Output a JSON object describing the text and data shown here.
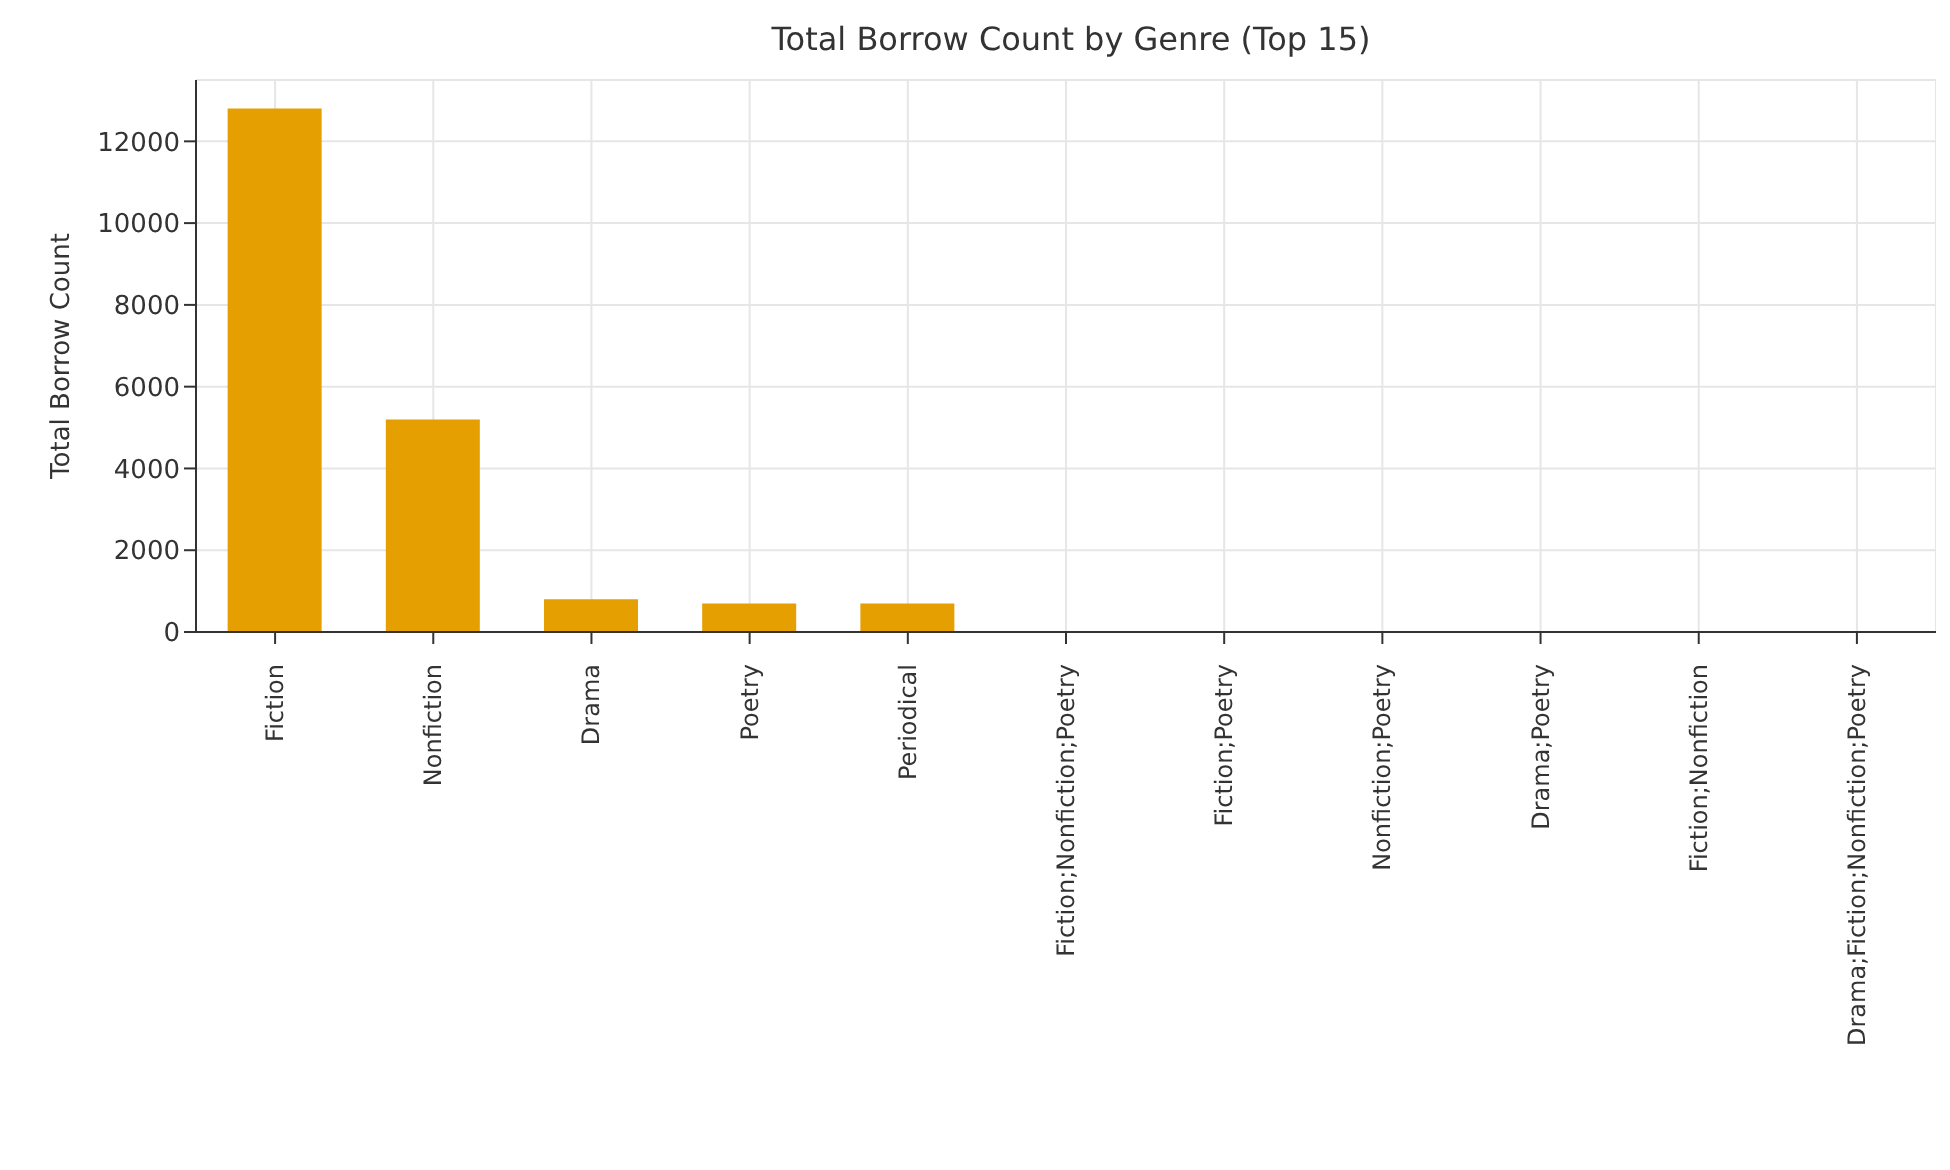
{
  "chart_data": {
    "type": "bar",
    "title": "Total Borrow Count by Genre (Top 15)",
    "ylabel": "Total Borrow Count",
    "categories": [
      "Fiction",
      "Nonfiction",
      "Drama",
      "Poetry",
      "Periodical",
      "Fiction;Nonfiction;Poetry",
      "Fiction;Poetry",
      "Nonfiction;Poetry",
      "Drama;Poetry",
      "Fiction;Nonfiction",
      "Drama;Fiction;Nonfiction;Poetry"
    ],
    "values": [
      12800,
      5200,
      800,
      700,
      700,
      0,
      0,
      0,
      0,
      0,
      0
    ],
    "color": "#e69f00",
    "ylim": [
      0,
      13500
    ],
    "yticks": [
      0,
      2000,
      4000,
      6000,
      8000,
      10000,
      12000
    ],
    "grid": true
  }
}
